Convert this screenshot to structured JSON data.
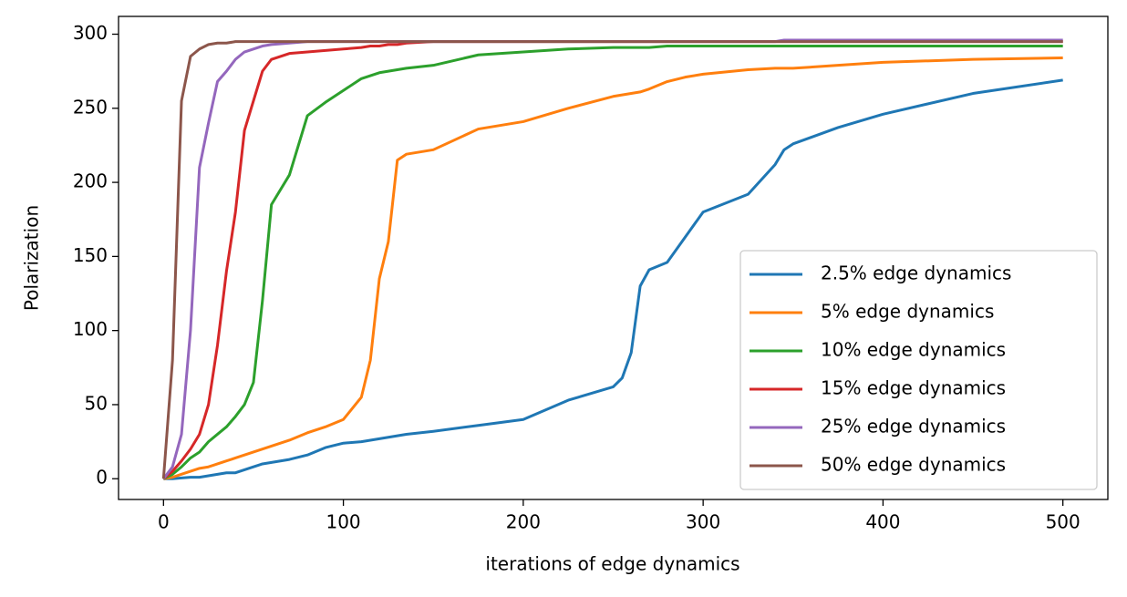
{
  "chart_data": {
    "type": "line",
    "xlabel": "iterations of edge dynamics",
    "ylabel": "Polarization",
    "x": [
      0,
      5,
      10,
      15,
      20,
      25,
      30,
      35,
      40,
      45,
      50,
      55,
      60,
      70,
      80,
      90,
      100,
      110,
      115,
      120,
      125,
      130,
      135,
      150,
      175,
      200,
      225,
      250,
      255,
      260,
      265,
      270,
      280,
      290,
      300,
      325,
      340,
      345,
      350,
      375,
      400,
      450,
      500
    ],
    "series": [
      {
        "name": "2.5% edge dynamics",
        "color": "#1f77b4",
        "values": [
          0,
          0,
          0.5,
          1,
          1,
          2,
          3,
          4,
          4,
          6,
          8,
          10,
          11,
          13,
          16,
          21,
          24,
          25,
          26,
          27,
          28,
          29,
          30,
          32,
          36,
          40,
          53,
          62,
          68,
          85,
          130,
          141,
          146,
          163,
          180,
          192,
          212,
          222,
          226,
          237,
          246,
          260,
          269
        ]
      },
      {
        "name": "5% edge dynamics",
        "color": "#ff7f0e",
        "values": [
          0,
          1,
          3,
          5,
          7,
          8,
          10,
          12,
          14,
          16,
          18,
          20,
          22,
          26,
          31,
          35,
          40,
          55,
          80,
          135,
          160,
          215,
          219,
          222,
          236,
          241,
          250,
          258,
          259,
          260,
          261,
          263,
          268,
          271,
          273,
          276,
          277,
          277,
          277,
          279,
          281,
          283,
          284
        ]
      },
      {
        "name": "10% edge dynamics",
        "color": "#2ca02c",
        "values": [
          0,
          3,
          8,
          14,
          18,
          25,
          30,
          35,
          42,
          50,
          65,
          120,
          185,
          205,
          245,
          254,
          262,
          270,
          272,
          274,
          275,
          276,
          277,
          279,
          286,
          288,
          290,
          291,
          291,
          291,
          291,
          291,
          292,
          292,
          292,
          292,
          292,
          292,
          292,
          292,
          292,
          292,
          292
        ]
      },
      {
        "name": "15% edge dynamics",
        "color": "#d62728",
        "values": [
          0,
          5,
          12,
          20,
          30,
          50,
          90,
          140,
          180,
          235,
          255,
          275,
          283,
          287,
          288,
          289,
          290,
          291,
          292,
          292,
          293,
          293,
          294,
          295,
          295,
          295,
          295,
          295,
          295,
          295,
          295,
          295,
          295,
          295,
          295,
          295,
          295,
          295,
          295,
          295,
          295,
          295,
          295
        ]
      },
      {
        "name": "25% edge dynamics",
        "color": "#9467bd",
        "values": [
          0,
          8,
          30,
          100,
          210,
          240,
          268,
          275,
          283,
          288,
          290,
          292,
          293,
          294,
          295,
          295,
          295,
          295,
          295,
          295,
          295,
          295,
          295,
          295,
          295,
          295,
          295,
          295,
          295,
          295,
          295,
          295,
          295,
          295,
          295,
          295,
          295,
          296,
          296,
          296,
          296,
          296,
          296
        ]
      },
      {
        "name": "50% edge dynamics",
        "color": "#8c564b",
        "values": [
          0,
          80,
          255,
          285,
          290,
          293,
          294,
          294,
          295,
          295,
          295,
          295,
          295,
          295,
          295,
          295,
          295,
          295,
          295,
          295,
          295,
          295,
          295,
          295,
          295,
          295,
          295,
          295,
          295,
          295,
          295,
          295,
          295,
          295,
          295,
          295,
          295,
          295,
          295,
          295,
          295,
          295,
          295
        ]
      }
    ],
    "xlim": [
      -25,
      525
    ],
    "ylim": [
      -14,
      312
    ],
    "xticks": [
      0,
      100,
      200,
      300,
      400,
      500
    ],
    "yticks": [
      0,
      50,
      100,
      150,
      200,
      250,
      300
    ],
    "legend": "lower right"
  }
}
